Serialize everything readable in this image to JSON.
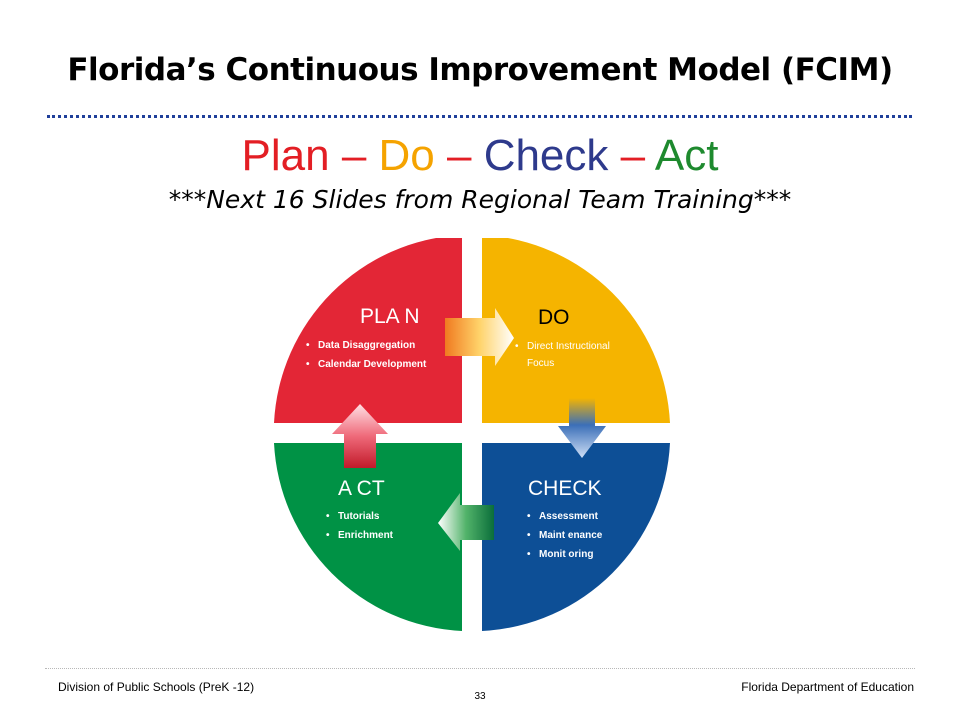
{
  "title": "Florida’s Continuous Improvement Model (FCIM)",
  "pdca_line": [
    {
      "text": "Plan",
      "color": "#e31e24"
    },
    {
      "text": " – ",
      "color": "#e31e24"
    },
    {
      "text": "Do",
      "color": "#f5a300"
    },
    {
      "text": " – ",
      "color": "#e31e24"
    },
    {
      "text": "Check",
      "color": "#2e3a8c"
    },
    {
      "text": " – ",
      "color": "#e31e24"
    },
    {
      "text": "Act",
      "color": "#1e8a2e"
    }
  ],
  "subtitle": "***Next 16 Slides from Regional Team Training***",
  "wheel": {
    "quadrants": [
      {
        "key": "plan",
        "heading": "PLA N",
        "color": "#e32636",
        "bullets": [
          "Data Disaggregation",
          "Calendar Development"
        ]
      },
      {
        "key": "do",
        "heading": "DO",
        "color": "#f5b400",
        "bullets": [
          "Direct Instructional",
          "Focus"
        ]
      },
      {
        "key": "check",
        "heading": "CHECK",
        "color": "#0d4f96",
        "bullets": [
          "Assessment",
          "Maint enance",
          "Monit oring"
        ]
      },
      {
        "key": "act",
        "heading": "A CT",
        "color": "#009245",
        "bullets": [
          "Tutorials",
          "Enrichment"
        ]
      }
    ]
  },
  "footer": {
    "left": "Division of Public Schools (PreK -12)",
    "right": "Florida Department of Education",
    "page_number": "33"
  }
}
